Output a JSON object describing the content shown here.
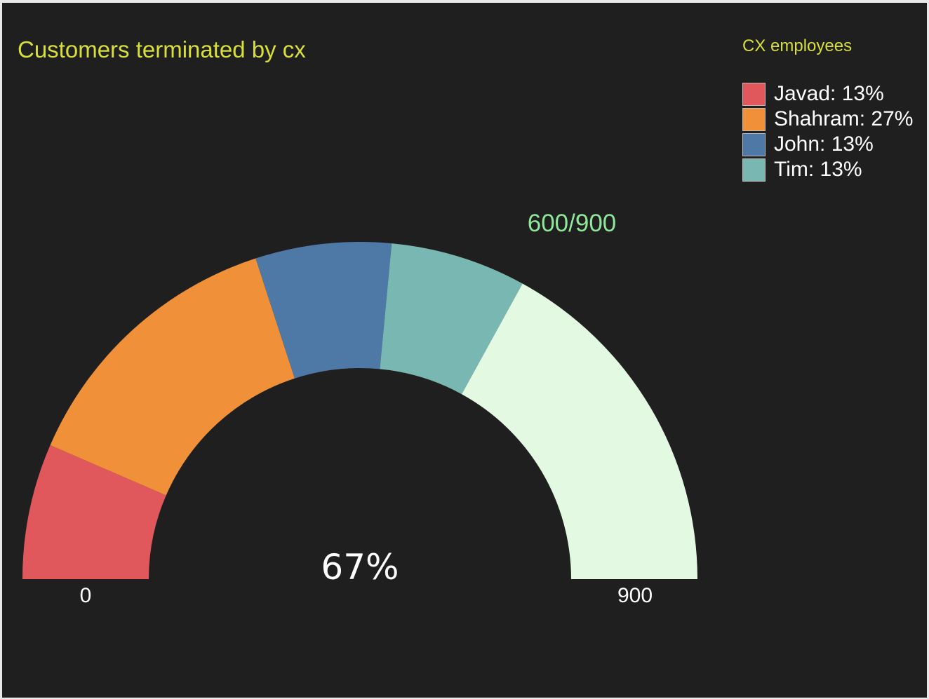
{
  "chart_data": {
    "type": "gauge",
    "title": "Customers terminated by cx",
    "legend_title": "CX employees",
    "legend_position": "top-right",
    "min": 0,
    "max": 900,
    "min_label": "0",
    "max_label": "900",
    "value": 600,
    "value_label": "600/900",
    "center_label": "67%",
    "segments": [
      {
        "name": "Javad",
        "percent": 13,
        "label": "Javad: 13%",
        "color": "#e0585b"
      },
      {
        "name": "Shahram",
        "percent": 27,
        "label": "Shahram: 27%",
        "color": "#f0913a"
      },
      {
        "name": "John",
        "percent": 13,
        "label": "John: 13%",
        "color": "#4e79a6"
      },
      {
        "name": "Tim",
        "percent": 13,
        "label": "Tim: 13%",
        "color": "#79b7b2"
      }
    ],
    "remaining_color": "#e3f9e1",
    "colors": {
      "background": "#1f1f1f",
      "title": "#d8df3a",
      "value_label": "#8fe79a",
      "text": "#ffffff"
    }
  }
}
